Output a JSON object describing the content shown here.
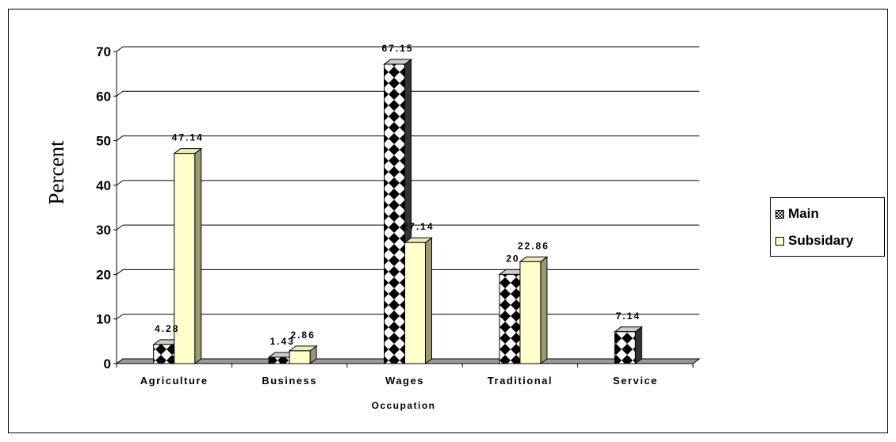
{
  "chart_data": {
    "type": "bar",
    "categories": [
      "Agriculture",
      "Business",
      "Wages",
      "Traditional",
      "Service"
    ],
    "series": [
      {
        "name": "Main",
        "values": [
          4.28,
          1.43,
          67.15,
          20,
          7.14
        ],
        "labels": [
          "4.28",
          "1.43",
          "67.15",
          "20",
          "7.14"
        ]
      },
      {
        "name": "Subsidary",
        "values": [
          47.14,
          2.86,
          27.14,
          22.86,
          0
        ],
        "labels": [
          "47.14",
          "2.86",
          "27.14",
          "22.86",
          null
        ]
      }
    ],
    "xlabel": "Occupation",
    "ylabel": "Percent",
    "ylim": [
      0,
      70
    ],
    "yticks": [
      "0",
      "10",
      "20",
      "30",
      "40",
      "50",
      "60",
      "70"
    ],
    "grid": true,
    "legend_position": "right",
    "colors": {
      "main_dark": "#000000",
      "main_light": "#ffffff",
      "subsidary": "#ffffcc",
      "floor": "#999999",
      "bar_side": "#999977"
    }
  },
  "legend": {
    "main_label": "Main",
    "subsidary_label": "Subsidary"
  }
}
